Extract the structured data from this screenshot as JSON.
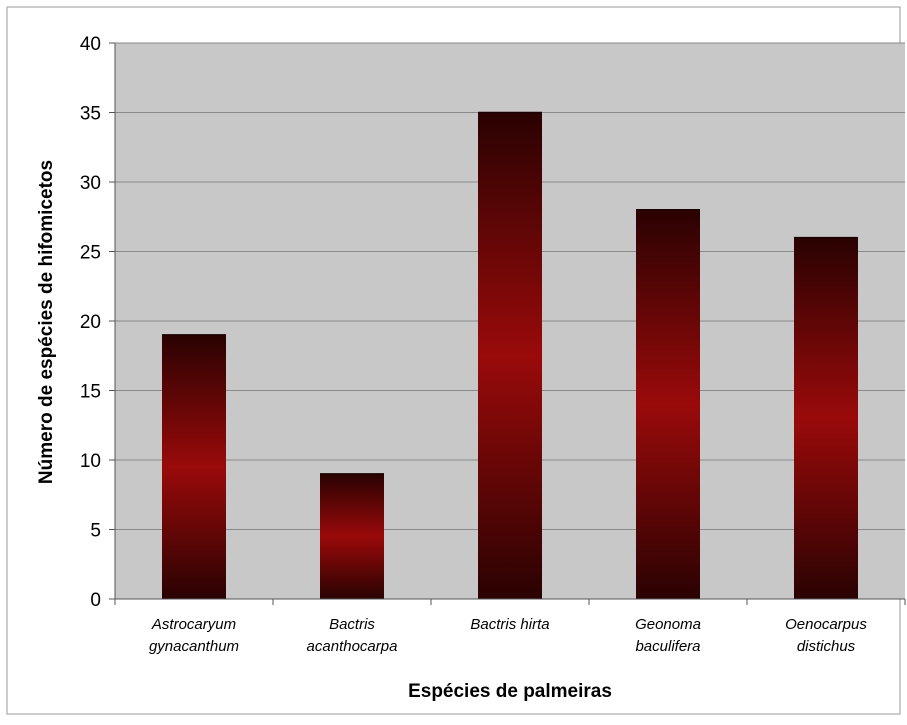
{
  "chart_data": {
    "type": "bar",
    "title": "",
    "xlabel": "Espécies de palmeiras",
    "ylabel": "Número de espécies de hifomicetos",
    "categories": [
      [
        "Astrocaryum",
        "gynacanthum"
      ],
      [
        "Bactris",
        "acanthocarpa"
      ],
      [
        "Bactris hirta"
      ],
      [
        "Geonoma",
        "baculifera"
      ],
      [
        "Oenocarpus",
        "distichus"
      ]
    ],
    "values": [
      19,
      9,
      35,
      28,
      26
    ],
    "ylim": [
      0,
      40
    ],
    "yticks": [
      0,
      5,
      10,
      15,
      20,
      25,
      30,
      35,
      40
    ],
    "grid": true,
    "legend": "none",
    "colors": {
      "bar_center": "#9a0a0a",
      "bar_edge": "#2a0202",
      "plot_bg": "#c8c8c8",
      "grid": "#8a8a8a",
      "axis": "#555555",
      "text": "#000000"
    }
  }
}
